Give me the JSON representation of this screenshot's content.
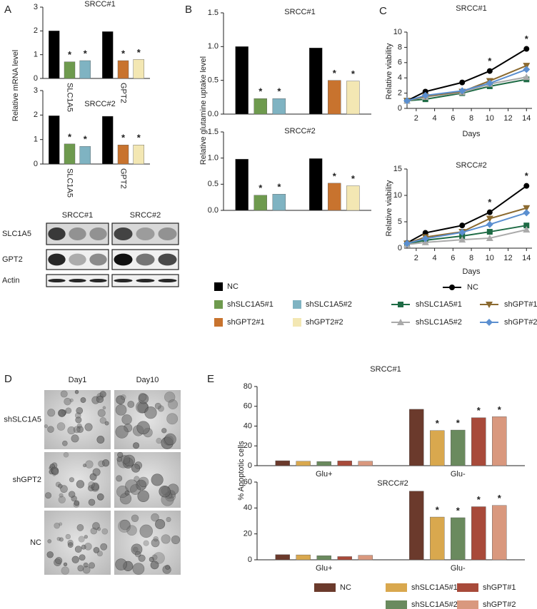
{
  "panels": [
    "A",
    "B",
    "C",
    "D",
    "E"
  ],
  "chart_data": [
    {
      "type": "bar",
      "title": "SRCC#1",
      "ylabel": "Relative mRNA level",
      "categories": [
        "SLC1A5",
        "GPT2"
      ],
      "ylim": [
        0,
        3
      ],
      "yticks": [
        0,
        1,
        2,
        3
      ],
      "series": [
        {
          "color": "#000000",
          "values": [
            2.0,
            1.97
          ]
        },
        {
          "color": "#6e9a4e",
          "values": [
            0.7,
            null
          ],
          "annotations": [
            "*",
            null
          ]
        },
        {
          "color": "#7fb3c2",
          "values": [
            0.75,
            null
          ],
          "annotations": [
            "*",
            null
          ]
        },
        {
          "color": "#c8732e",
          "values": [
            null,
            0.75
          ],
          "annotations": [
            null,
            "*"
          ]
        },
        {
          "color": "#f3e7b3",
          "values": [
            null,
            0.8
          ],
          "annotations": [
            null,
            "*"
          ]
        }
      ]
    },
    {
      "type": "bar",
      "title": "SRCC#2",
      "categories": [
        "SLC1A5",
        "GPT2"
      ],
      "ylim": [
        0,
        3
      ],
      "yticks": [
        0,
        1,
        2,
        3
      ],
      "series": [
        {
          "color": "#000000",
          "values": [
            1.97,
            1.95
          ]
        },
        {
          "color": "#6e9a4e",
          "values": [
            0.82,
            null
          ],
          "annotations": [
            "*",
            null
          ]
        },
        {
          "color": "#7fb3c2",
          "values": [
            0.72,
            null
          ],
          "annotations": [
            "*",
            null
          ]
        },
        {
          "color": "#c8732e",
          "values": [
            null,
            0.78
          ],
          "annotations": [
            null,
            "*"
          ]
        },
        {
          "color": "#f3e7b3",
          "values": [
            null,
            0.78
          ],
          "annotations": [
            null,
            "*"
          ]
        }
      ]
    },
    {
      "type": "bar",
      "title": "SRCC#1",
      "ylabel": "Relative glutamine uptake level",
      "ylim": [
        0,
        1.5
      ],
      "yticks": [
        {
          "value": 0,
          "label": "0.0"
        },
        0.5,
        {
          "value": 1,
          "label": "1.0"
        },
        1.5
      ],
      "series": [
        {
          "name": "NC",
          "color": "#000000",
          "values": [
            1.0,
            0.98
          ]
        },
        {
          "name": "shSLC1A5#1",
          "color": "#6e9a4e",
          "values": [
            0.23,
            null
          ],
          "annotations": [
            "*",
            null
          ]
        },
        {
          "name": "shSLC1A5#2",
          "color": "#7fb3c2",
          "values": [
            0.23,
            null
          ],
          "annotations": [
            "*",
            null
          ]
        },
        {
          "name": "shGPT2#1",
          "color": "#c8732e",
          "values": [
            null,
            0.5
          ],
          "annotations": [
            null,
            "*"
          ]
        },
        {
          "name": "shGPT2#2",
          "color": "#f3e7b3",
          "values": [
            null,
            0.49
          ],
          "annotations": [
            null,
            "*"
          ]
        }
      ]
    },
    {
      "type": "bar",
      "title": "SRCC#2",
      "ylim": [
        0,
        1.5
      ],
      "yticks": [
        {
          "value": 0,
          "label": "0.0"
        },
        0.5,
        {
          "value": 1,
          "label": "1.0"
        },
        1.5
      ],
      "series": [
        {
          "color": "#000000",
          "values": [
            0.98,
            0.99
          ]
        },
        {
          "color": "#6e9a4e",
          "values": [
            0.29,
            null
          ],
          "annotations": [
            "*",
            null
          ]
        },
        {
          "color": "#7fb3c2",
          "values": [
            0.31,
            null
          ],
          "annotations": [
            "*",
            null
          ]
        },
        {
          "color": "#c8732e",
          "values": [
            null,
            0.52
          ],
          "annotations": [
            null,
            "*"
          ]
        },
        {
          "color": "#f3e7b3",
          "values": [
            null,
            0.47
          ],
          "annotations": [
            null,
            "*"
          ]
        }
      ]
    },
    {
      "type": "line",
      "title": "SRCC#1",
      "ylabel": "Relative viability",
      "xlabel": "Days",
      "x": [
        1,
        3,
        7,
        10,
        14
      ],
      "xlim": [
        1,
        14.6
      ],
      "xticks": [
        2,
        4,
        6,
        8,
        10,
        12,
        14
      ],
      "ylim": [
        0,
        10
      ],
      "yticks": [
        0,
        2,
        4,
        6,
        8,
        10
      ],
      "series": [
        {
          "name": "NC",
          "color": "#000000",
          "marker": "circle",
          "values": [
            1,
            2.2,
            3.4,
            4.9,
            7.8
          ],
          "annotations": [
            null,
            null,
            null,
            "*",
            "*"
          ]
        },
        {
          "name": "shSLC1A5#1",
          "color": "#1e6b45",
          "marker": "square",
          "values": [
            1,
            1.2,
            2,
            2.9,
            3.8
          ]
        },
        {
          "name": "shSLC1A5#2",
          "color": "#aaaaaa",
          "marker": "triangle-up",
          "values": [
            1,
            1.5,
            2.1,
            3.2,
            4.1
          ]
        },
        {
          "name": "shGPT#1",
          "color": "#8b6a30",
          "marker": "triangle-down",
          "values": [
            1,
            1.6,
            2.2,
            3.6,
            5.6
          ]
        },
        {
          "name": "shGPT#2",
          "color": "#5b8fd0",
          "marker": "diamond",
          "values": [
            1,
            1.7,
            2.3,
            3.3,
            5.1
          ]
        }
      ]
    },
    {
      "type": "line",
      "title": "SRCC#2",
      "ylabel": "Relative viability",
      "xlabel": "Days",
      "x": [
        1,
        3,
        7,
        10,
        14
      ],
      "xlim": [
        1,
        14.6
      ],
      "xticks": [
        2,
        4,
        6,
        8,
        10,
        12,
        14
      ],
      "ylim": [
        0,
        15
      ],
      "yticks": [
        0,
        5,
        10,
        15
      ],
      "series": [
        {
          "color": "#000000",
          "marker": "circle",
          "values": [
            1,
            2.9,
            4.3,
            6.8,
            11.8
          ],
          "annotations": [
            null,
            null,
            null,
            "*",
            "*"
          ]
        },
        {
          "color": "#1e6b45",
          "marker": "square",
          "values": [
            0.8,
            1.5,
            2.3,
            3.1,
            4.3
          ]
        },
        {
          "color": "#aaaaaa",
          "marker": "triangle-up",
          "values": [
            0.7,
            1.1,
            1.6,
            1.9,
            3.5
          ]
        },
        {
          "color": "#8b6a30",
          "marker": "triangle-down",
          "values": [
            0.9,
            2.1,
            3.1,
            5.6,
            7.6
          ]
        },
        {
          "color": "#5b8fd0",
          "marker": "diamond",
          "values": [
            0.9,
            1.8,
            3.0,
            4.5,
            6.7
          ]
        }
      ]
    },
    {
      "type": "bar",
      "title": "SRCC#1",
      "ylabel": "% Apoptotic cells",
      "categories": [
        "Glu+",
        "Glu-"
      ],
      "ylim": [
        0,
        80
      ],
      "yticks": [
        0,
        20,
        40,
        60,
        80
      ],
      "series": [
        {
          "name": "NC",
          "color": "#6b3a2c",
          "values": [
            5,
            57
          ]
        },
        {
          "name": "shSLC1A5#1",
          "color": "#d9a84e",
          "values": [
            4.5,
            35.5
          ],
          "annotations": [
            null,
            "*"
          ]
        },
        {
          "name": "shSLC1A5#2",
          "color": "#6a8a5e",
          "values": [
            4.2,
            36
          ],
          "annotations": [
            null,
            "*"
          ]
        },
        {
          "name": "shGPT#1",
          "color": "#a84a3a",
          "values": [
            4.8,
            48.5
          ],
          "annotations": [
            null,
            "*"
          ]
        },
        {
          "name": "shGPT#2",
          "color": "#d9987e",
          "values": [
            4.5,
            49.5
          ],
          "annotations": [
            null,
            "*"
          ]
        }
      ]
    },
    {
      "type": "bar",
      "title": "SRCC#2",
      "categories": [
        "Glu+",
        "Glu-"
      ],
      "ylim": [
        0,
        60
      ],
      "yticks": [
        0,
        20,
        40,
        60
      ],
      "series": [
        {
          "color": "#6b3a2c",
          "values": [
            4,
            53
          ]
        },
        {
          "color": "#d9a84e",
          "values": [
            3.8,
            33
          ],
          "annotations": [
            null,
            "*"
          ]
        },
        {
          "color": "#6a8a5e",
          "values": [
            3.2,
            32.5
          ],
          "annotations": [
            null,
            "*"
          ]
        },
        {
          "color": "#a84a3a",
          "values": [
            2.5,
            41
          ],
          "annotations": [
            null,
            "*"
          ]
        },
        {
          "color": "#d9987e",
          "values": [
            3.5,
            42
          ],
          "annotations": [
            null,
            "*"
          ]
        }
      ]
    }
  ],
  "blot": {
    "columns": [
      "SRCC#1",
      "SRCC#2"
    ],
    "rows": [
      "SLC1A5",
      "GPT2",
      "Actin"
    ]
  },
  "micrographs": {
    "columns": [
      "Day1",
      "Day10"
    ],
    "rows": [
      "shSLC1A5",
      "shGPT2",
      "NC"
    ]
  }
}
